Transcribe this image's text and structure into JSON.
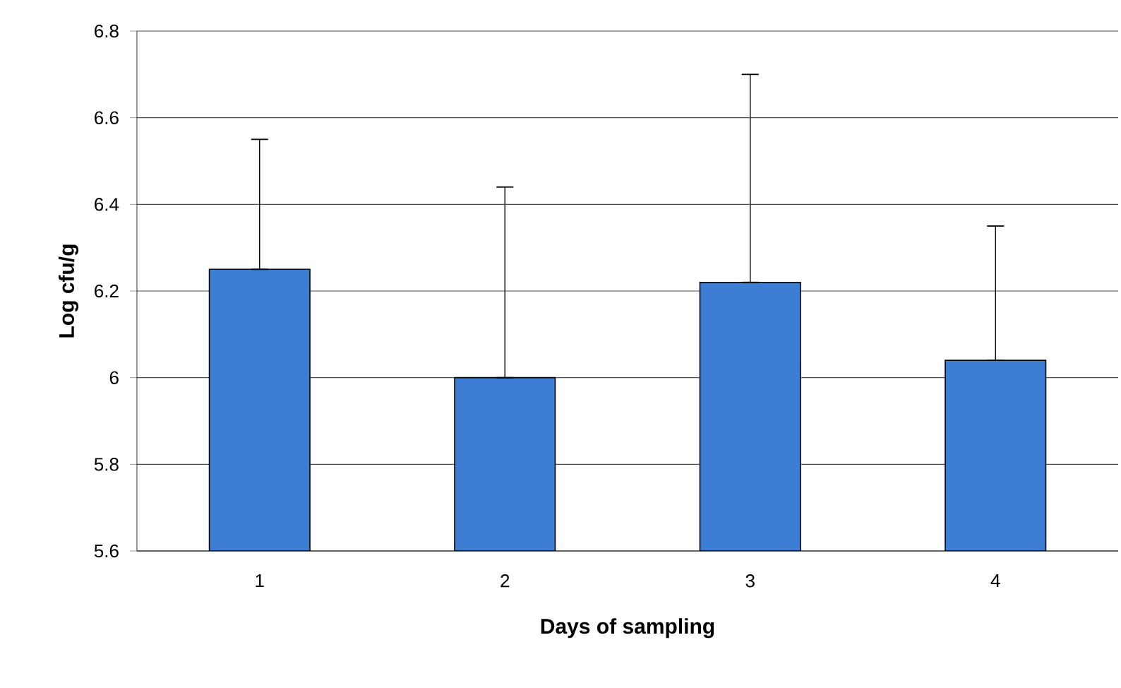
{
  "chart_data": {
    "type": "bar",
    "xlabel": "Days of sampling",
    "ylabel": "Log cfu/g",
    "categories": [
      "1",
      "2",
      "3",
      "4"
    ],
    "values": [
      6.25,
      6.0,
      6.22,
      6.04
    ],
    "errors": [
      [
        6.25,
        6.55
      ],
      [
        6.0,
        6.44
      ],
      [
        6.22,
        6.7
      ],
      [
        6.04,
        6.35
      ]
    ],
    "color": "#3b7ed3",
    "ylim": [
      5.6,
      6.8
    ],
    "yticks": [
      5.6,
      5.8,
      6,
      6.2,
      6.4,
      6.6,
      6.8
    ],
    "grid": "y"
  }
}
